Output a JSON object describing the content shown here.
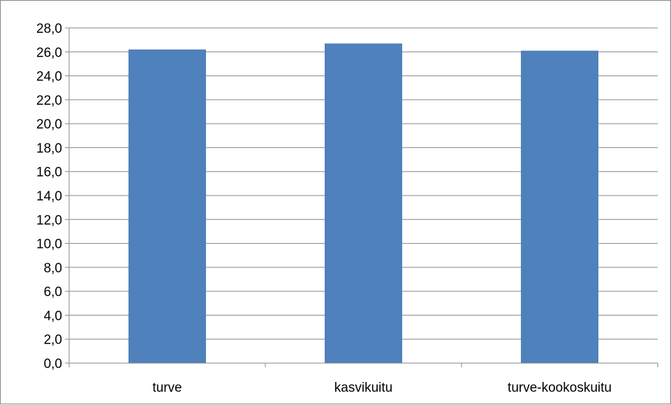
{
  "chart_data": {
    "type": "bar",
    "title": "",
    "xlabel": "",
    "ylabel": "",
    "categories": [
      "turve",
      "kasvikuitu",
      "turve-kookoskuitu"
    ],
    "values": [
      26.2,
      26.7,
      26.1
    ],
    "ylim": [
      0,
      28
    ],
    "ytick_step": 2,
    "ytick_labels": [
      "0,0",
      "2,0",
      "4,0",
      "6,0",
      "8,0",
      "10,0",
      "12,0",
      "14,0",
      "16,0",
      "18,0",
      "20,0",
      "22,0",
      "24,0",
      "26,0",
      "28,0"
    ],
    "grid": true,
    "legend": "none",
    "bar_color": "#4F81BD",
    "grid_color": "#868686"
  }
}
